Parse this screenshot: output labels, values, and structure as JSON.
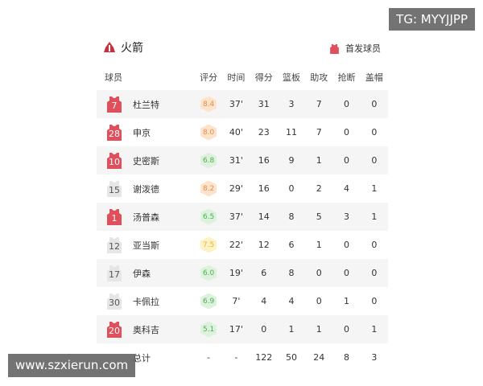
{
  "watermark_top": "TG: MYYJJPP",
  "watermark_bottom": "www.szxierun.com",
  "team": {
    "name": "火箭",
    "legend": "首发球员"
  },
  "colors": {
    "starter": "#e0505c",
    "bench": "#e6e6e6",
    "high": "#fde3cc",
    "mid": "#fdf2c4",
    "low": "#dcf2dc"
  },
  "headers": [
    "球员",
    "评分",
    "时间",
    "得分",
    "篮板",
    "助攻",
    "抢断",
    "盖帽"
  ],
  "players": [
    {
      "num": "7",
      "name": "杜兰特",
      "starter": true,
      "rating": "8.4",
      "min": "37'",
      "pts": "31",
      "reb": "3",
      "ast": "7",
      "stl": "0",
      "blk": "0"
    },
    {
      "num": "28",
      "name": "申京",
      "starter": true,
      "rating": "8.0",
      "min": "40'",
      "pts": "23",
      "reb": "11",
      "ast": "7",
      "stl": "0",
      "blk": "0"
    },
    {
      "num": "10",
      "name": "史密斯",
      "starter": true,
      "rating": "6.8",
      "min": "31'",
      "pts": "16",
      "reb": "9",
      "ast": "1",
      "stl": "0",
      "blk": "0"
    },
    {
      "num": "15",
      "name": "谢泼德",
      "starter": false,
      "rating": "8.2",
      "min": "29'",
      "pts": "16",
      "reb": "0",
      "ast": "2",
      "stl": "4",
      "blk": "1"
    },
    {
      "num": "1",
      "name": "汤普森",
      "starter": true,
      "rating": "6.5",
      "min": "37'",
      "pts": "14",
      "reb": "8",
      "ast": "5",
      "stl": "3",
      "blk": "1"
    },
    {
      "num": "12",
      "name": "亚当斯",
      "starter": false,
      "rating": "7.5",
      "min": "22'",
      "pts": "12",
      "reb": "6",
      "ast": "1",
      "stl": "0",
      "blk": "0"
    },
    {
      "num": "17",
      "name": "伊森",
      "starter": false,
      "rating": "6.0",
      "min": "19'",
      "pts": "6",
      "reb": "8",
      "ast": "0",
      "stl": "0",
      "blk": "0"
    },
    {
      "num": "30",
      "name": "卡佩拉",
      "starter": false,
      "rating": "6.9",
      "min": "7'",
      "pts": "4",
      "reb": "4",
      "ast": "0",
      "stl": "1",
      "blk": "0"
    },
    {
      "num": "20",
      "name": "奥科吉",
      "starter": true,
      "rating": "5.1",
      "min": "17'",
      "pts": "0",
      "reb": "1",
      "ast": "1",
      "stl": "0",
      "blk": "1"
    }
  ],
  "total": {
    "label": "总计",
    "rating": "-",
    "min": "-",
    "pts": "122",
    "reb": "50",
    "ast": "24",
    "stl": "8",
    "blk": "3"
  }
}
